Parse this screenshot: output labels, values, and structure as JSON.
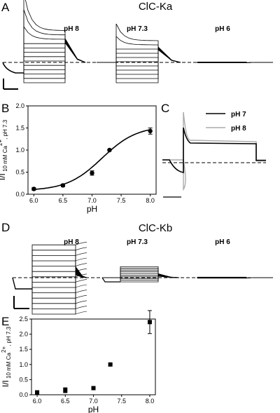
{
  "panels": {
    "A": {
      "letter": "A",
      "title": "ClC-Ka",
      "conditions": [
        "pH 8",
        "pH 7.3",
        "pH 6"
      ]
    },
    "B": {
      "letter": "B"
    },
    "C": {
      "letter": "C",
      "legend": [
        {
          "label": "pH 7",
          "color": "#000000"
        },
        {
          "label": "pH 8",
          "color": "#aaaaaa"
        }
      ]
    },
    "D": {
      "letter": "D",
      "title": "ClC-Kb",
      "conditions": [
        "pH 8",
        "pH 7.3",
        "pH 6"
      ]
    },
    "E": {
      "letter": "E"
    }
  },
  "chart_data": [
    {
      "panel": "B",
      "type": "scatter",
      "x": [
        6.0,
        6.5,
        7.0,
        7.3,
        8.0
      ],
      "y": [
        0.12,
        0.2,
        0.48,
        1.0,
        1.43
      ],
      "yerr": [
        0.03,
        0.03,
        0.05,
        0.02,
        0.07
      ],
      "fit_curve": true,
      "xlabel": "pH",
      "ylabel_main": "I/I",
      "ylabel_sub": "10 mM Ca",
      "ylabel_sup": "2+",
      "ylabel_sub2": ", pH 7.3",
      "xlim": [
        5.9,
        8.1
      ],
      "ylim": [
        0.0,
        2.0
      ],
      "xticks": [
        "6.0",
        "6.5",
        "7.0",
        "7.5",
        "8.0"
      ],
      "yticks": [
        "0.0",
        "0.5",
        "1.0",
        "1.5",
        "2.0"
      ],
      "marker": "circle"
    },
    {
      "panel": "E",
      "type": "scatter",
      "x": [
        6.0,
        6.5,
        7.0,
        7.3,
        8.0
      ],
      "y": [
        0.08,
        0.15,
        0.22,
        1.0,
        2.4
      ],
      "yerr": [
        0.04,
        0.08,
        0.03,
        0.03,
        0.38
      ],
      "fit_curve": false,
      "xlabel": "pH",
      "ylabel_main": "I/I",
      "ylabel_sub": "10 mM Ca",
      "ylabel_sup": "2+",
      "ylabel_sub2": ", pH 7.3",
      "xlim": [
        5.9,
        8.1
      ],
      "ylim": [
        0.0,
        2.5
      ],
      "xticks": [
        "6.0",
        "6.5",
        "7.0",
        "7.5",
        "8.0"
      ],
      "yticks": [
        "0.0",
        "0.5",
        "1.0",
        "1.5",
        "2.0",
        "2.5"
      ],
      "marker": "square"
    }
  ]
}
